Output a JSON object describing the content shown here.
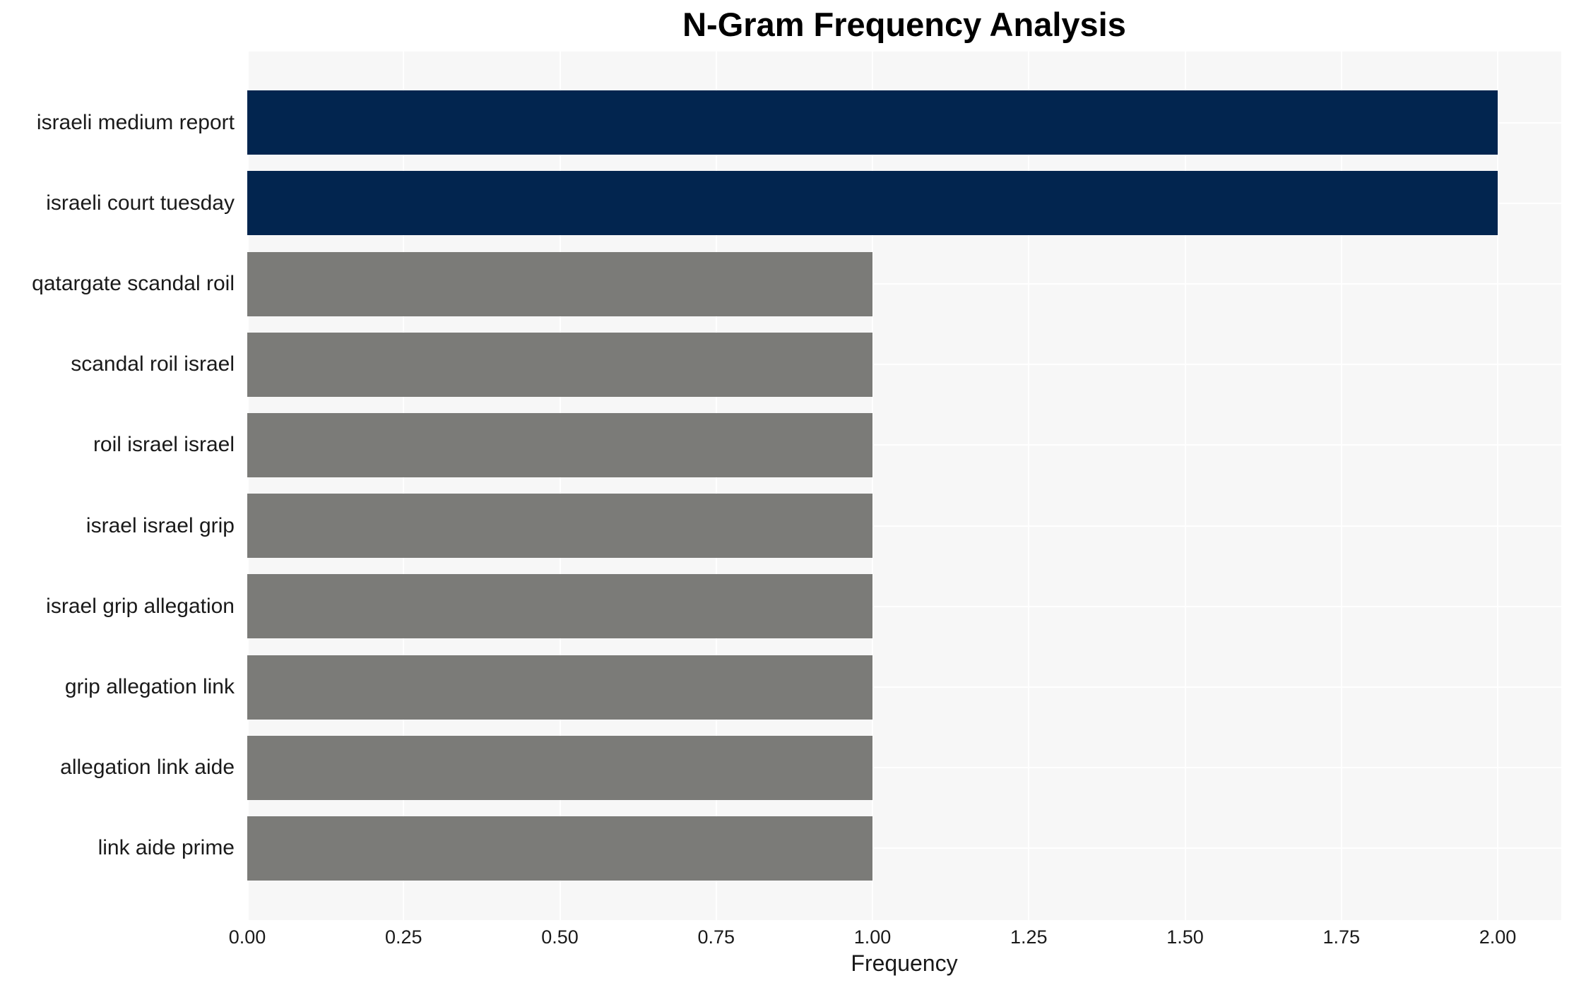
{
  "title": "N-Gram Frequency Analysis",
  "chart_data": {
    "type": "bar",
    "orientation": "horizontal",
    "title": "N-Gram Frequency Analysis",
    "xlabel": "Frequency",
    "ylabel": "",
    "categories": [
      "israeli medium report",
      "israeli court tuesday",
      "qatargate scandal roil",
      "scandal roil israel",
      "roil israel israel",
      "israel israel grip",
      "israel grip allegation",
      "grip allegation link",
      "allegation link aide",
      "link aide prime"
    ],
    "values": [
      2,
      2,
      1,
      1,
      1,
      1,
      1,
      1,
      1,
      1
    ],
    "bar_colors": [
      "#02254f",
      "#02254f",
      "#7b7b78",
      "#7b7b78",
      "#7b7b78",
      "#7b7b78",
      "#7b7b78",
      "#7b7b78",
      "#7b7b78",
      "#7b7b78"
    ],
    "xlim": [
      0,
      2.1
    ],
    "xticks": [
      "0.00",
      "0.25",
      "0.50",
      "0.75",
      "1.00",
      "1.25",
      "1.50",
      "1.75",
      "2.00"
    ],
    "xtick_values": [
      0,
      0.25,
      0.5,
      0.75,
      1.0,
      1.25,
      1.5,
      1.75,
      2.0
    ],
    "grid": true,
    "legend": false,
    "colors": {
      "highlight": "#02254f",
      "default": "#7b7b78",
      "plot_background": "#f7f7f7",
      "gridline": "#ffffff",
      "text": "#1a1a1a"
    }
  }
}
